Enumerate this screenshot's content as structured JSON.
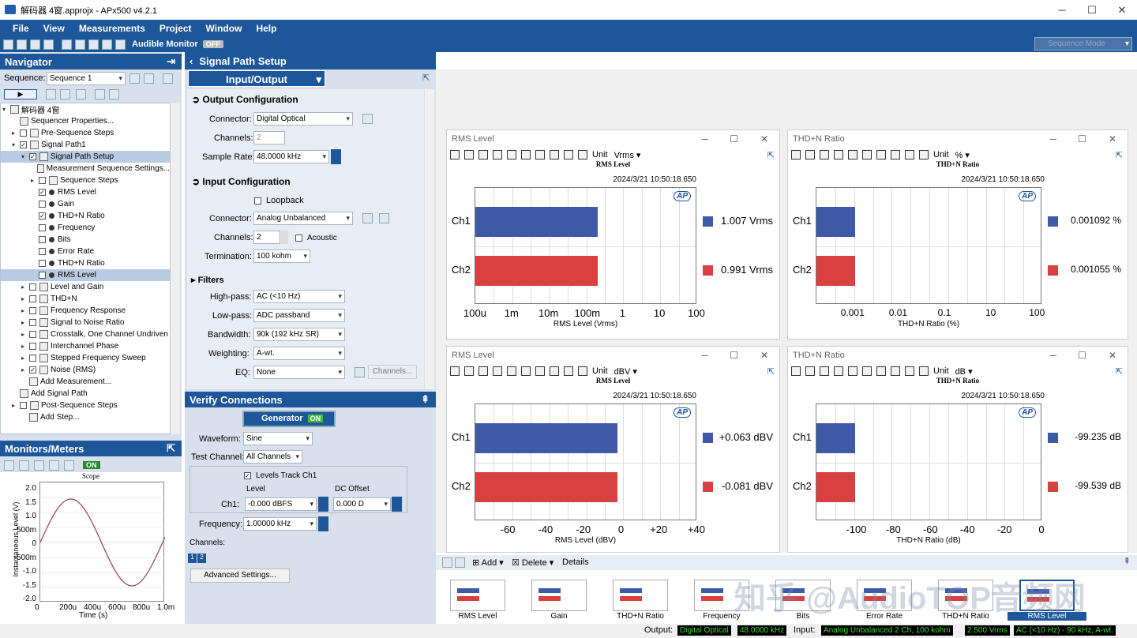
{
  "window": {
    "title": "解码器 4窗.approjx - APx500 v4.2.1"
  },
  "menu": [
    "File",
    "View",
    "Measurements",
    "Project",
    "Window",
    "Help"
  ],
  "toolbar": {
    "audible_monitor": "Audible Monitor",
    "toggle": "OFF",
    "sequence_mode": "Sequence Mode"
  },
  "navigator": {
    "title": "Navigator",
    "sequence_label": "Sequence:",
    "sequence_value": "Sequence 1",
    "items": [
      {
        "label": "解码器 4窗",
        "lvl": 0,
        "type": "root"
      },
      {
        "label": "Sequencer Properties...",
        "lvl": 1,
        "type": "icon"
      },
      {
        "label": "Pre-Sequence Steps",
        "lvl": 1,
        "type": "folder"
      },
      {
        "label": "Signal Path1",
        "lvl": 1,
        "type": "check"
      },
      {
        "label": "Signal Path Setup",
        "lvl": 2,
        "type": "check",
        "sel": true
      },
      {
        "label": "Measurement Sequence Settings...",
        "lvl": 3,
        "type": "icon"
      },
      {
        "label": "Sequence Steps",
        "lvl": 3,
        "type": "folder"
      },
      {
        "label": "RMS Level",
        "lvl": 3,
        "type": "checkbul"
      },
      {
        "label": "Gain",
        "lvl": 3,
        "type": "bul"
      },
      {
        "label": "THD+N Ratio",
        "lvl": 3,
        "type": "checkbul"
      },
      {
        "label": "Frequency",
        "lvl": 3,
        "type": "bul"
      },
      {
        "label": "Bits",
        "lvl": 3,
        "type": "bul"
      },
      {
        "label": "Error Rate",
        "lvl": 3,
        "type": "bul"
      },
      {
        "label": "THD+N Ratio",
        "lvl": 3,
        "type": "bul"
      },
      {
        "label": "RMS Level",
        "lvl": 3,
        "type": "bul",
        "sel2": true
      },
      {
        "label": "Level and Gain",
        "lvl": 2,
        "type": "folder"
      },
      {
        "label": "THD+N",
        "lvl": 2,
        "type": "folder"
      },
      {
        "label": "Frequency Response",
        "lvl": 2,
        "type": "folder"
      },
      {
        "label": "Signal to Noise Ratio",
        "lvl": 2,
        "type": "folder"
      },
      {
        "label": "Crosstalk, One Channel Undriven",
        "lvl": 2,
        "type": "folder"
      },
      {
        "label": "Interchannel Phase",
        "lvl": 2,
        "type": "folder"
      },
      {
        "label": "Stepped Frequency Sweep",
        "lvl": 2,
        "type": "folder"
      },
      {
        "label": "Noise (RMS)",
        "lvl": 2,
        "type": "folder"
      },
      {
        "label": "Add Measurement...",
        "lvl": 2,
        "type": "icon"
      },
      {
        "label": "Add Signal Path",
        "lvl": 1,
        "type": "icon"
      },
      {
        "label": "Post-Sequence Steps",
        "lvl": 1,
        "type": "folder"
      },
      {
        "label": "Add Step...",
        "lvl": 2,
        "type": "icon"
      }
    ]
  },
  "monitors": {
    "title": "Monitors/Meters",
    "on": "ON",
    "scope_title": "Scope",
    "ylabel": "Instantaneous Level (V)",
    "xlabel": "Time (s)",
    "yticks": [
      "2.0",
      "1.5",
      "1.0",
      "500m",
      "0",
      "-500m",
      "-1.0",
      "-1.5",
      "-2.0"
    ],
    "xticks": [
      "0",
      "200u",
      "400u",
      "600u",
      "800u",
      "1.0m"
    ]
  },
  "sps": {
    "title": "Signal Path Setup",
    "io": "Input/Output",
    "output": {
      "title": "Output Configuration",
      "connector_label": "Connector:",
      "connector": "Digital Optical",
      "channels_label": "Channels:",
      "channels": "2",
      "rate_label": "Sample Rate:",
      "rate": "48.0000 kHz"
    },
    "input": {
      "title": "Input Configuration",
      "loopback": "Loopback",
      "connector_label": "Connector:",
      "connector": "Analog Unbalanced",
      "channels_label": "Channels:",
      "channels": "2",
      "acoustic": "Acoustic",
      "term_label": "Termination:",
      "term": "100 kohm"
    },
    "filters": {
      "title": "Filters",
      "hp_label": "High-pass:",
      "hp": "AC (<10 Hz)",
      "lp_label": "Low-pass:",
      "lp": "ADC passband",
      "bw_label": "Bandwidth:",
      "bw": "90k (192 kHz SR)",
      "wt_label": "Weighting:",
      "wt": "A-wt.",
      "eq_label": "EQ:",
      "eq": "None",
      "channels_btn": "Channels..."
    }
  },
  "verify": {
    "title": "Verify Connections",
    "generator": "Generator",
    "on": "ON",
    "waveform_label": "Waveform:",
    "waveform": "Sine",
    "testch_label": "Test Channel:",
    "testch": "All Channels",
    "levels_track": "Levels Track Ch1",
    "level_h": "Level",
    "dc_h": "DC Offset",
    "ch1_label": "Ch1:",
    "level": "-0.000 dBFS",
    "dc": "0.000 D",
    "freq_label": "Frequency:",
    "freq": "1.00000 kHz",
    "channels_label": "Channels:",
    "adv": "Advanced Settings..."
  },
  "graphs": [
    {
      "win": "RMS Level",
      "unit": "Vrms",
      "inner": "RMS Level",
      "ts": "2024/3/21 10:50:18.650",
      "xlabel": "RMS Level (Vrms)",
      "xticks": [
        "100u",
        "1m",
        "10m",
        "100m",
        "1",
        "10",
        "100"
      ],
      "ch1": "1.007 Vrms",
      "ch2": "0.991 Vrms",
      "b1": 0.55,
      "b2": 0.55
    },
    {
      "win": "THD+N Ratio",
      "unit": "%",
      "inner": "THD+N Ratio",
      "ts": "2024/3/21 10:50:18.650",
      "xlabel": "THD+N Ratio (%)",
      "xticks": [
        "0.001",
        "0.01",
        "0.1",
        "10",
        "100"
      ],
      "ch1": "0.001092  %",
      "ch2": "0.001055  %",
      "b1": 0.17,
      "b2": 0.17
    },
    {
      "win": "RMS Level",
      "unit": "dBV",
      "inner": "RMS Level",
      "ts": "2024/3/21 10:50:18.650",
      "xlabel": "RMS Level (dBV)",
      "xticks": [
        "-60",
        "-40",
        "-20",
        "0",
        "+20",
        "+40"
      ],
      "ch1": "+0.063  dBV",
      "ch2": "-0.081  dBV",
      "b1": 0.64,
      "b2": 0.64
    },
    {
      "win": "THD+N Ratio",
      "unit": "dB",
      "inner": "THD+N Ratio",
      "ts": "2024/3/21 10:50:18.650",
      "xlabel": "THD+N Ratio (dB)",
      "xticks": [
        "-100",
        "-80",
        "-60",
        "-40",
        "-20",
        "0"
      ],
      "ch1": "-99.235  dB",
      "ch2": "-99.539  dB",
      "b1": 0.17,
      "b2": 0.17
    }
  ],
  "bottom": {
    "add": "Add",
    "delete": "Delete",
    "details": "Details",
    "thumbs": [
      "RMS Level",
      "Gain",
      "THD+N Ratio",
      "Frequency",
      "Bits",
      "Error Rate",
      "THD+N Ratio",
      "RMS Level"
    ]
  },
  "status": {
    "output_label": "Output:",
    "output": "Digital Optical",
    "rate": "48.0000 kHz",
    "input_label": "Input:",
    "input": "Analog Unbalanced 2 Ch, 100 kohm",
    "level": "2.500 Vrms",
    "filter": "AC (<10 Hz) - 90 kHz, A-wt."
  },
  "watermark": "知乎 @AudioTOP音频网",
  "colors": {
    "ch1": "#3f59a6",
    "ch2": "#d8413f",
    "header": "#1d5699"
  }
}
